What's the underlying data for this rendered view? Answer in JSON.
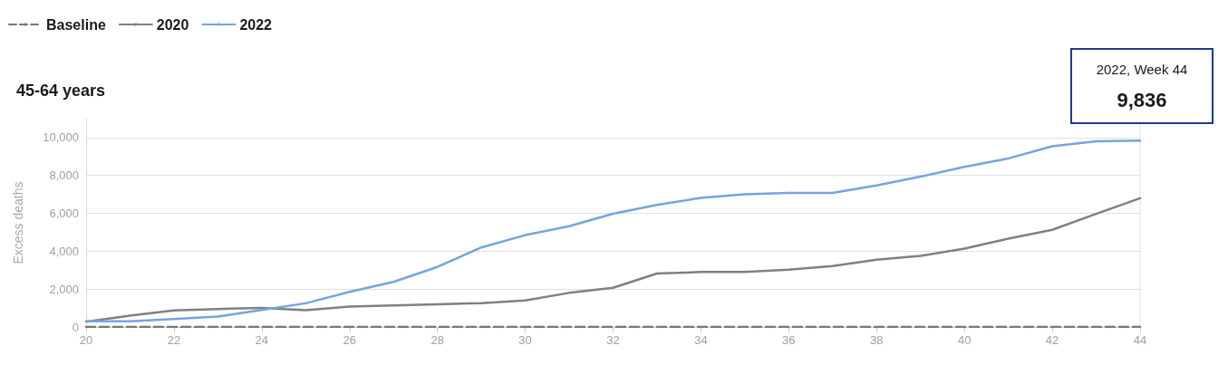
{
  "chart_data": {
    "type": "line",
    "title": "45-64 years",
    "ylabel": "Excess deaths",
    "x": [
      20,
      21,
      22,
      23,
      24,
      25,
      26,
      27,
      28,
      29,
      30,
      31,
      32,
      33,
      34,
      35,
      36,
      37,
      38,
      39,
      40,
      41,
      42,
      43,
      44
    ],
    "series": [
      {
        "name": "Baseline",
        "color": "#777777",
        "line_style": "dashed",
        "values": [
          0,
          0,
          0,
          0,
          0,
          0,
          0,
          0,
          0,
          0,
          0,
          0,
          0,
          0,
          0,
          0,
          0,
          0,
          0,
          0,
          0,
          0,
          0,
          0,
          0
        ]
      },
      {
        "name": "2020",
        "color": "#808080",
        "values": [
          280,
          600,
          870,
          950,
          1000,
          880,
          1080,
          1130,
          1200,
          1260,
          1400,
          1800,
          2070,
          2820,
          2900,
          2900,
          3020,
          3220,
          3550,
          3750,
          4140,
          4660,
          5130,
          5970,
          6800
        ]
      },
      {
        "name": "2022",
        "color": "#77a3de",
        "values": [
          300,
          300,
          420,
          550,
          900,
          1250,
          1850,
          2380,
          3170,
          4200,
          4850,
          5320,
          5980,
          6440,
          6820,
          7010,
          7080,
          7080,
          7470,
          7940,
          8450,
          8900,
          9540,
          9800,
          9836
        ]
      }
    ],
    "xlim": [
      20,
      44
    ],
    "xticks": [
      20,
      22,
      24,
      26,
      28,
      30,
      32,
      34,
      36,
      38,
      40,
      42,
      44
    ],
    "ylim": [
      0,
      11000
    ],
    "yticks": [
      {
        "value": 0,
        "label": "0"
      },
      {
        "value": 2000,
        "label": "2,000"
      },
      {
        "value": 4000,
        "label": "4,000"
      },
      {
        "value": 6000,
        "label": "6,000"
      },
      {
        "value": 8000,
        "label": "8,000"
      },
      {
        "value": 10000,
        "label": "10,000"
      }
    ],
    "annotations": [
      "2022, Week 44",
      "9,836"
    ],
    "grid": "y",
    "legend": "top left",
    "marker": "none",
    "line_style": "solid"
  }
}
